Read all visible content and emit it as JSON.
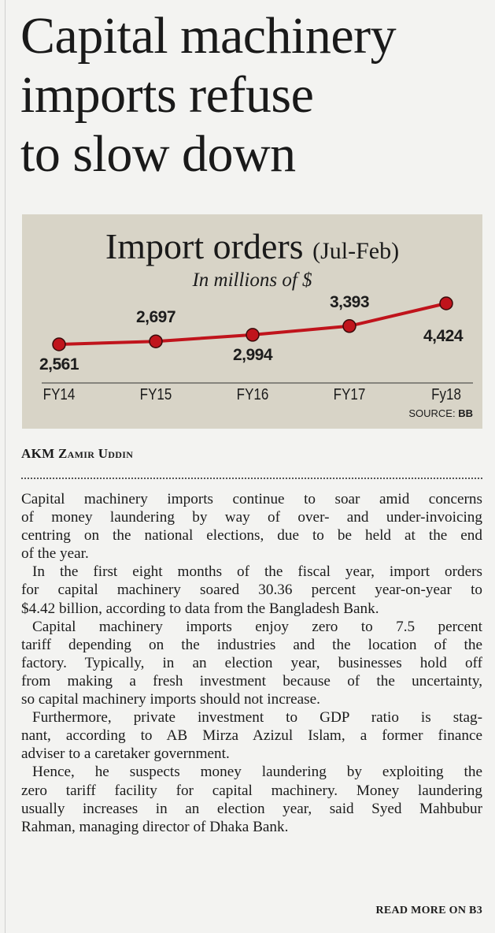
{
  "headline": [
    "Capital machinery",
    "imports refuse",
    "to slow down"
  ],
  "chart_data": {
    "type": "line",
    "title": "Import orders",
    "title_suffix": "(Jul-Feb)",
    "subtitle": "In millions of $",
    "categories": [
      "FY14",
      "FY15",
      "FY16",
      "FY17",
      "Fy18"
    ],
    "values": [
      2561,
      2697,
      2994,
      3393,
      4424
    ],
    "value_labels": [
      "2,561",
      "2,697",
      "2,994",
      "3,393",
      "4,424"
    ],
    "xlabel": "",
    "ylabel": "",
    "source_label": "SOURCE:",
    "source": "BB",
    "line_color": "#c0141c",
    "background": "#d8d4c7"
  },
  "byline": "AKM Zamir Uddin",
  "paragraphs": [
    [
      "Capital machinery imports continue to soar amid concerns",
      "of money laundering by way of over- and under-invoicing",
      "centring on the national elections, due to be held at the end",
      "of the year."
    ],
    [
      "In the first eight months of the fiscal year, import orders",
      "for capital machinery soared 30.36 percent year-on-year to",
      "$4.42 billion, according to data from the Bangladesh Bank."
    ],
    [
      "Capital machinery imports enjoy zero to 7.5 percent",
      "tariff depending on the industries and the location of the",
      "factory. Typically, in an election year, businesses hold off",
      "from making a fresh investment because of the uncertainty,",
      "so capital machinery imports should not increase."
    ],
    [
      "Furthermore, private investment to GDP ratio is stag-",
      "nant, according to AB Mirza Azizul Islam, a former finance",
      "adviser to a caretaker government."
    ],
    [
      "Hence, he suspects money laundering by exploiting the",
      "zero tariff facility for capital machinery. Money laundering",
      "usually increases in an election year, said Syed Mahbubur",
      "Rahman, managing director of Dhaka Bank."
    ]
  ],
  "read_more": "READ MORE ON B3"
}
